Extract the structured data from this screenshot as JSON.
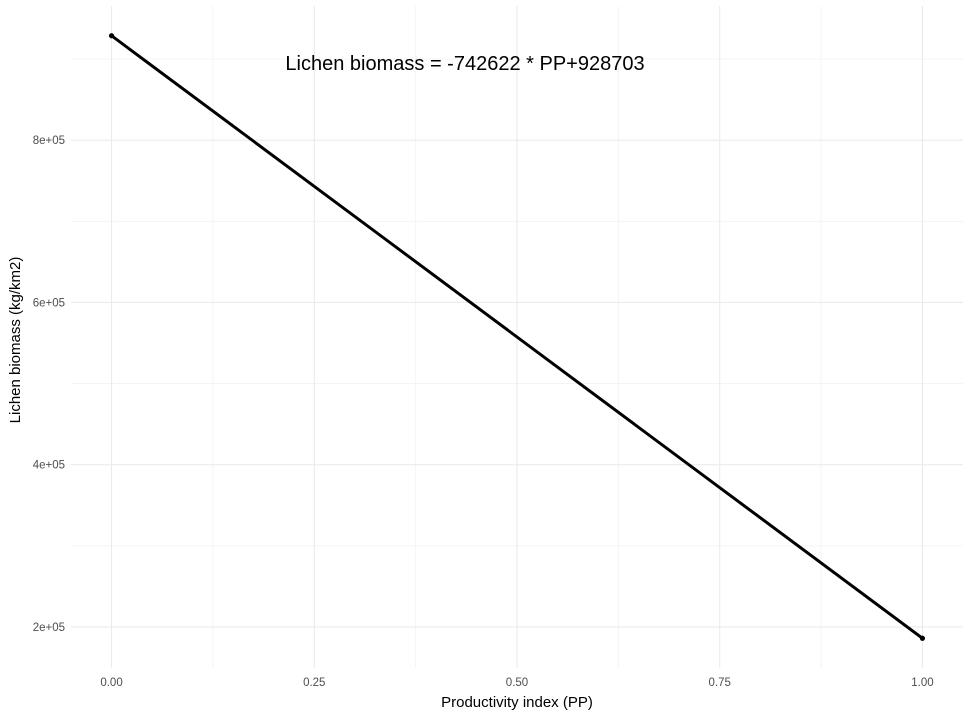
{
  "chart_data": {
    "type": "line",
    "title": "",
    "xlabel": "Productivity index (PP)",
    "ylabel": "Lichen biomass (kg/km2)",
    "annotation": "Lichen biomass = -742622 * PP+928703",
    "x": [
      0.0,
      1.0
    ],
    "series": [
      {
        "values": [
          928703,
          186081
        ],
        "color": "#000000"
      }
    ],
    "xlim": [
      -0.05,
      1.05
    ],
    "ylim": [
      149450,
      965334
    ],
    "x_ticks": [
      0.0,
      0.25,
      0.5,
      0.75,
      1.0
    ],
    "x_tick_labels": [
      "0.00",
      "0.25",
      "0.50",
      "0.75",
      "1.00"
    ],
    "y_ticks": [
      200000,
      400000,
      600000,
      800000
    ],
    "y_tick_labels": [
      "2e+05",
      "4e+05",
      "6e+05",
      "8e+05"
    ],
    "x_minor_ticks": [
      -0.125,
      0.125,
      0.375,
      0.625,
      0.875,
      1.125
    ],
    "y_minor_ticks": [
      100000,
      300000,
      500000,
      700000,
      900000
    ],
    "grid": true,
    "legend": "none",
    "background": "#ffffff"
  }
}
